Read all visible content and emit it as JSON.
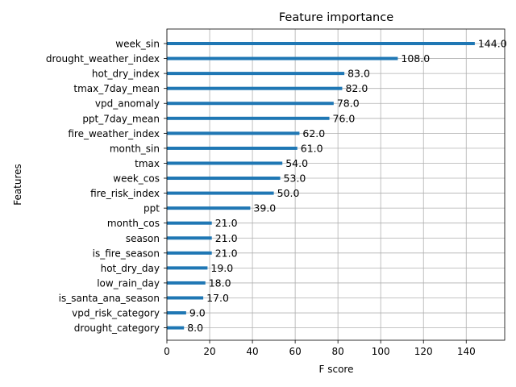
{
  "chart_data": {
    "type": "bar",
    "orientation": "horizontal",
    "title": "Feature importance",
    "xlabel": "F score",
    "ylabel": "Features",
    "xlim": [
      0,
      158
    ],
    "xticks": [
      0,
      20,
      40,
      60,
      80,
      100,
      120,
      140
    ],
    "grid": true,
    "bar_color": "#1f77b4",
    "categories": [
      "week_sin",
      "drought_weather_index",
      "hot_dry_index",
      "tmax_7day_mean",
      "vpd_anomaly",
      "ppt_7day_mean",
      "fire_weather_index",
      "month_sin",
      "tmax",
      "week_cos",
      "fire_risk_index",
      "ppt",
      "month_cos",
      "season",
      "is_fire_season",
      "hot_dry_day",
      "low_rain_day",
      "is_santa_ana_season",
      "vpd_risk_category",
      "drought_category"
    ],
    "values": [
      144,
      108,
      83,
      82,
      78,
      76,
      62,
      61,
      54,
      53,
      50,
      39,
      21,
      21,
      21,
      19,
      18,
      17,
      9,
      8
    ],
    "value_labels": [
      "144.0",
      "108.0",
      "83.0",
      "82.0",
      "78.0",
      "76.0",
      "62.0",
      "61.0",
      "54.0",
      "53.0",
      "50.0",
      "39.0",
      "21.0",
      "21.0",
      "21.0",
      "19.0",
      "18.0",
      "17.0",
      "9.0",
      "8.0"
    ]
  }
}
